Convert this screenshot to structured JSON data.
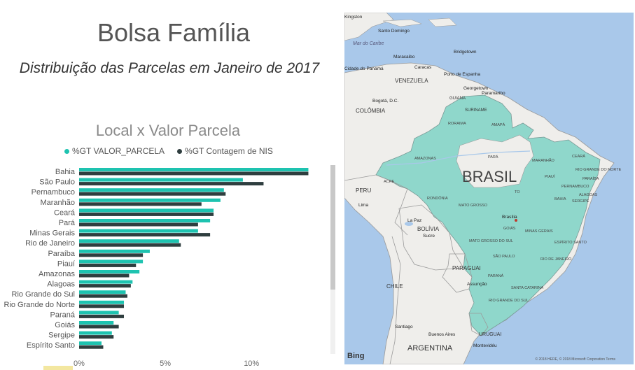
{
  "page": {
    "title": "Bolsa Família",
    "subtitle": "Distribuição das Parcelas em Janeiro de 2017"
  },
  "chart_data": {
    "type": "bar",
    "orientation": "horizontal",
    "title": "Local x Valor Parcela",
    "categories": [
      "Bahia",
      "São Paulo",
      "Pernambuco",
      "Maranhão",
      "Ceará",
      "Pará",
      "Minas Gerais",
      "Rio de Janeiro",
      "Paraíba",
      "Piauí",
      "Amazonas",
      "Alagoas",
      "Rio Grande do Sul",
      "Rio Grande do Norte",
      "Paraná",
      "Goiás",
      "Sergipe",
      "Espírito Santo"
    ],
    "series": [
      {
        "name": "%GT VALOR_PARCELA",
        "color": "#1ec3b0",
        "values": [
          13.3,
          9.5,
          8.4,
          8.2,
          7.8,
          7.6,
          6.9,
          5.8,
          4.1,
          3.7,
          3.5,
          3.1,
          2.7,
          2.6,
          2.3,
          2.0,
          1.9,
          1.3
        ]
      },
      {
        "name": "%GT Contagem de NIS",
        "color": "#2f3e3f",
        "values": [
          13.3,
          10.7,
          8.5,
          7.1,
          7.8,
          6.9,
          7.6,
          5.9,
          3.7,
          3.3,
          2.9,
          3.0,
          2.8,
          2.6,
          2.6,
          2.3,
          2.0,
          1.4
        ]
      }
    ],
    "xlim": [
      0,
      14.5
    ],
    "xticks": [
      0,
      5,
      10
    ],
    "xtick_labels": [
      "0%",
      "5%",
      "10%"
    ],
    "legend": "top",
    "grid": false
  },
  "map": {
    "countries": [
      {
        "name": "VENEZUELA"
      },
      {
        "name": "COLÔMBIA"
      },
      {
        "name": "PERU"
      },
      {
        "name": "BOLÍVIA"
      },
      {
        "name": "PARAGUAI"
      },
      {
        "name": "CHILE"
      },
      {
        "name": "ARGENTINA"
      },
      {
        "name": "URUGUAI"
      },
      {
        "name": "GUIANA"
      },
      {
        "name": "SURINAME"
      }
    ],
    "country_main": "BRASIL",
    "cities": [
      "Bogotá, D.C.",
      "Caracas",
      "Lima",
      "La Paz",
      "Sucre",
      "Brasília",
      "Assunção",
      "Santiago",
      "Buenos Aires",
      "Montevidéu",
      "Georgetown",
      "Paramaribo",
      "Maracaibo",
      "Santo Domingo",
      "Bridgetown",
      "Porto de Espanha",
      "Cidade do Panamá",
      "Kingston"
    ],
    "states": [
      "AMAZONAS",
      "PARÁ",
      "MARANHÃO",
      "PIAUÍ",
      "CEARÁ",
      "RIO GRANDE DO NORTE",
      "PARAÍBA",
      "PERNAMBUCO",
      "ALAGOAS",
      "SERGIPE",
      "BAHIA",
      "TO",
      "RONDÔNIA",
      "ACRE",
      "MATO GROSSO",
      "MATO GROSSO DO SUL",
      "GOIÁS",
      "MINAS GERAIS",
      "ESPÍRITO SANTO",
      "RIO DE JANEIRO",
      "SÃO PAULO",
      "PARANÁ",
      "SANTA CATARINA",
      "RIO GRANDE DO SUL",
      "AMAPÁ",
      "RORAIMA"
    ],
    "sea_label": "Mar do Caribe",
    "bing_label": "Bing",
    "copyright": "© 2018 HERE, © 2018 Microsoft Corporation Terms"
  }
}
